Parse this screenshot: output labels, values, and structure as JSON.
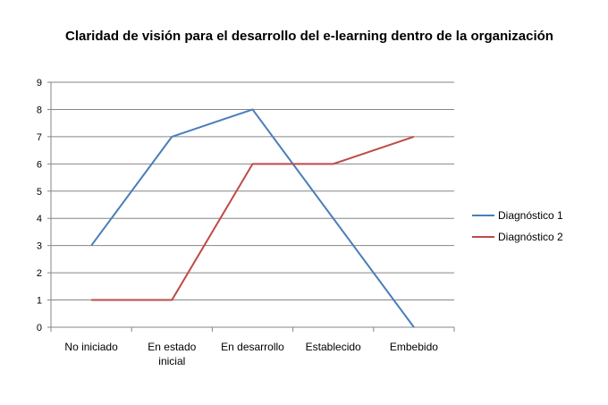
{
  "chart_data": {
    "type": "line",
    "title": "Claridad de visión para el desarrollo del e-learning dentro de la organización",
    "xlabel": "",
    "ylabel": "",
    "categories": [
      [
        "No iniciado"
      ],
      [
        "En estado",
        "inicial"
      ],
      [
        "En desarrollo"
      ],
      [
        "Establecido"
      ],
      [
        "Embebido"
      ]
    ],
    "ylim": [
      0,
      9
    ],
    "yticks": [
      0,
      1,
      2,
      3,
      4,
      5,
      6,
      7,
      8,
      9
    ],
    "grid": true,
    "legend_position": "right",
    "series": [
      {
        "name": "Diagnóstico 1",
        "color": "#4a7ebb",
        "values": [
          3,
          7,
          8,
          4,
          0
        ]
      },
      {
        "name": "Diagnóstico 2",
        "color": "#be4b48",
        "values": [
          1,
          1,
          6,
          6,
          7
        ]
      }
    ]
  }
}
